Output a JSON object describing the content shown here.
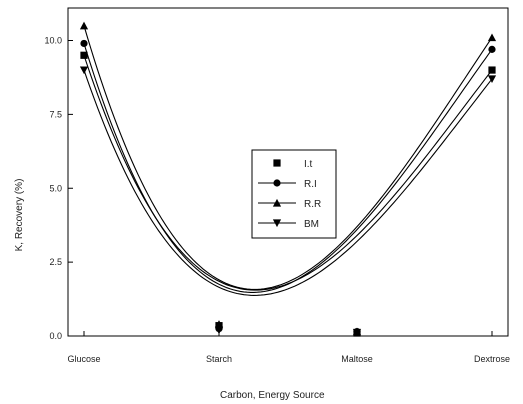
{
  "chart_data": {
    "type": "scatter",
    "xlabel": "Carbon, Energy Source",
    "ylabel": "K, Recovery (%)",
    "categories": [
      "Glucose",
      "Starch",
      "Maltose",
      "Dextrose"
    ],
    "yticks": [
      "0.0",
      "2.5",
      "5.0",
      "7.5",
      "10.0"
    ],
    "ylim": [
      0,
      11.1
    ],
    "grid": false,
    "legend_position": "center-right",
    "series": [
      {
        "name": "I.t",
        "marker": "square",
        "values": [
          9.5,
          0.35,
          0.1,
          9.0
        ]
      },
      {
        "name": "R.I",
        "marker": "circle",
        "values": [
          9.9,
          0.25,
          0.15,
          9.7
        ]
      },
      {
        "name": "R.R",
        "marker": "triangle-up",
        "values": [
          10.5,
          0.4,
          0.15,
          10.1
        ]
      },
      {
        "name": "BM",
        "marker": "triangle-down",
        "values": [
          9.0,
          0.2,
          0.12,
          8.7
        ]
      }
    ],
    "fits": [
      {
        "series": "I.t",
        "values": [
          9.5,
          1.85,
          3.4,
          9.0
        ]
      },
      {
        "series": "R.I",
        "values": [
          9.9,
          1.75,
          3.6,
          9.7
        ]
      },
      {
        "series": "R.R",
        "values": [
          10.5,
          1.9,
          3.7,
          10.1
        ]
      },
      {
        "series": "BM",
        "values": [
          9.0,
          1.65,
          3.2,
          8.7
        ]
      }
    ]
  }
}
